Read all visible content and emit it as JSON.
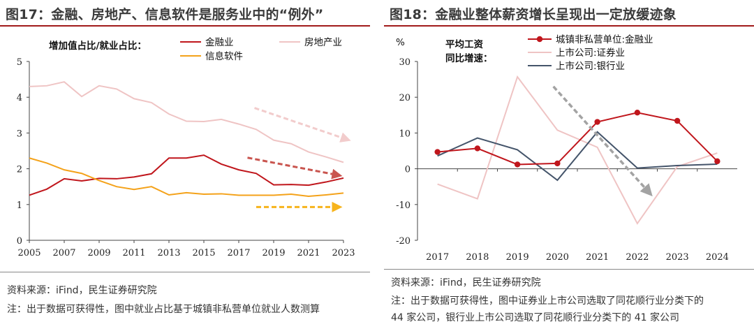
{
  "left": {
    "title": "图17：金融、房地产、信息软件是服务业中的“例外”",
    "source": "资料来源：iFind，民生证券研究院",
    "note": "注：出于数据可获得性，图中就业占比基于城镇非私营单位就业人数测算",
    "chart_data": {
      "type": "line",
      "title": "",
      "ylabel": "增加值占比/就业占比：",
      "xlabel": "",
      "x": [
        2005,
        2006,
        2007,
        2008,
        2009,
        2010,
        2011,
        2012,
        2013,
        2014,
        2015,
        2016,
        2017,
        2018,
        2019,
        2020,
        2021,
        2022,
        2023
      ],
      "xticks": [
        "2005",
        "2007",
        "2009",
        "2011",
        "2013",
        "2015",
        "2017",
        "2019",
        "2021",
        "2023"
      ],
      "yticks": [
        "0",
        "1",
        "2",
        "3",
        "4",
        "5"
      ],
      "ylim": [
        0,
        5
      ],
      "legend_position": "top-right",
      "series": [
        {
          "name": "金融业",
          "color": "#c0161c",
          "values": [
            1.26,
            1.43,
            1.72,
            1.66,
            1.73,
            1.72,
            1.77,
            1.86,
            2.3,
            2.3,
            2.38,
            2.13,
            1.97,
            1.87,
            1.55,
            1.56,
            1.54,
            1.63,
            1.74
          ]
        },
        {
          "name": "房地产业",
          "color": "#efc4c4",
          "values": [
            4.3,
            4.32,
            4.43,
            4.02,
            4.32,
            4.23,
            3.96,
            3.85,
            3.53,
            3.33,
            3.32,
            3.38,
            3.25,
            3.1,
            2.8,
            2.7,
            2.47,
            2.33,
            2.18
          ]
        },
        {
          "name": "信息软件",
          "color": "#f4a21a",
          "values": [
            2.3,
            2.16,
            1.97,
            1.87,
            1.67,
            1.5,
            1.42,
            1.5,
            1.27,
            1.33,
            1.29,
            1.3,
            1.26,
            1.26,
            1.26,
            1.29,
            1.23,
            1.27,
            1.32
          ]
        }
      ],
      "annotations": [
        {
          "kind": "dashed-arrow",
          "color": "#f2cccc",
          "from": [
            2017.9,
            3.7
          ],
          "to": [
            2023.2,
            2.82
          ]
        },
        {
          "kind": "dashed-arrow",
          "color": "#c9554f",
          "from": [
            2017.5,
            2.31
          ],
          "to": [
            2022.7,
            1.82
          ]
        },
        {
          "kind": "dashed-arrow",
          "color": "#f7b41c",
          "from": [
            2018.0,
            0.93
          ],
          "to": [
            2022.7,
            0.93
          ]
        }
      ]
    }
  },
  "right": {
    "title": "图18：金融业整体薪资增长呈现出一定放缓迹象",
    "source": "资料来源：iFind，民生证券研究院",
    "note1": "注：出于数据可获得性，图中证券业上市公司选取了同花顺行业分类下的",
    "note2": "44 家公司，银行业上市公司选取了同花顺行业分类下的 41 家公司",
    "chart_data": {
      "type": "line",
      "title": "",
      "unit": "%",
      "ylabel_line1": "平均工资",
      "ylabel_line2": "同比增速：",
      "xlabel": "",
      "x": [
        "2017",
        "2018",
        "2019",
        "2020",
        "2021",
        "2022",
        "2023",
        "2024"
      ],
      "yticks": [
        "30",
        "20",
        "10",
        "0",
        "-10",
        "-20"
      ],
      "ylim": [
        -20,
        30
      ],
      "legend_position": "top-right",
      "series": [
        {
          "name": "城镇非私营单位:金融业",
          "color": "#c0161c",
          "markers": true,
          "values": [
            4.7,
            5.7,
            1.2,
            1.5,
            13.1,
            15.7,
            13.4,
            2.1
          ]
        },
        {
          "name": "上市公司:证券业",
          "color": "#efc4c4",
          "markers": false,
          "values": [
            -4.3,
            -8.4,
            25.7,
            10.8,
            6.0,
            -15.3,
            0.6,
            4.4
          ]
        },
        {
          "name": "上市公司:银行业",
          "color": "#44546a",
          "markers": false,
          "values": [
            3.6,
            8.6,
            5.3,
            -3.2,
            10.3,
            0.2,
            0.9,
            1.3
          ]
        }
      ],
      "annotations": [
        {
          "kind": "dashed-arrow",
          "color": "#a3a3a3",
          "from": [
            2019.9,
            23.0
          ],
          "to": [
            2022.3,
            -6.7
          ]
        }
      ]
    }
  }
}
